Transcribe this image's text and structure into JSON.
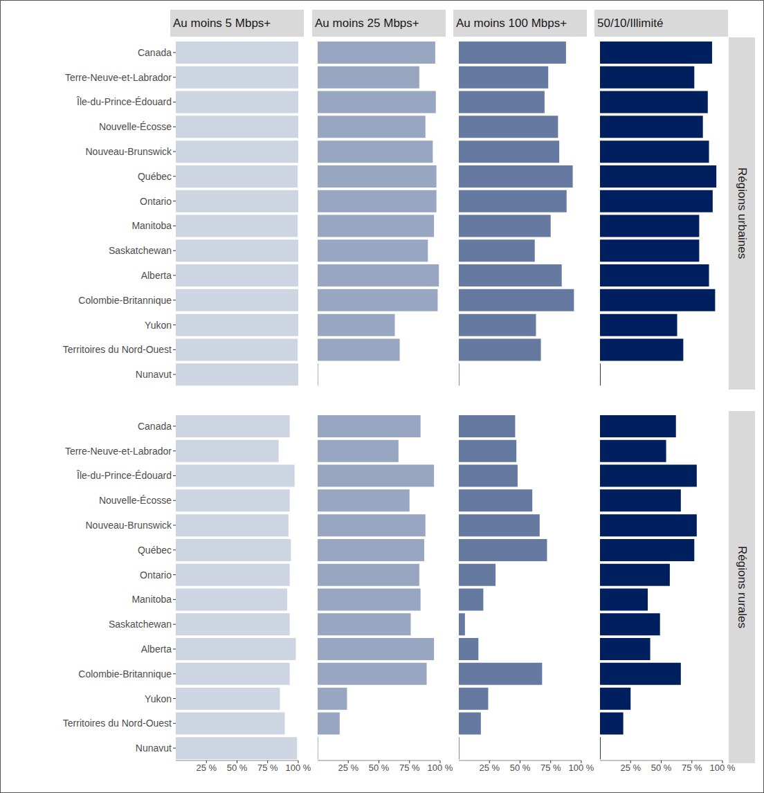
{
  "chart_data": {
    "type": "bar",
    "orientation": "horizontal",
    "categories": [
      "Canada",
      "Terre-Neuve-et-Labrador",
      "Île-du-Prince-Édouard",
      "Nouvelle-Écosse",
      "Nouveau-Brunswick",
      "Québec",
      "Ontario",
      "Manitoba",
      "Saskatchewan",
      "Alberta",
      "Colombie-Britannique",
      "Yukon",
      "Territoires du Nord-Ouest",
      "Nunavut"
    ],
    "xlim": [
      0,
      100
    ],
    "xticks": [
      {
        "value": 25,
        "label": "25 %"
      },
      {
        "value": 50,
        "label": "50 %"
      },
      {
        "value": 75,
        "label": "75 %"
      },
      {
        "value": 100,
        "label": "100 %"
      }
    ],
    "columns": [
      {
        "title": "Au moins 5 Mbps+",
        "color": "#cdd4e2"
      },
      {
        "title": "Au moins 25 Mbps+",
        "color": "#98a6c1"
      },
      {
        "title": "Au moins 100 Mbps+",
        "color": "#6679a1"
      },
      {
        "title": "50/10/Illimité",
        "color": "#001f5f"
      }
    ],
    "rows": [
      {
        "label": "Régions urbaines",
        "values": [
          [
            100,
            100,
            100,
            100,
            100,
            99.5,
            100,
            99.5,
            100,
            100,
            100,
            100,
            99.5,
            100
          ],
          [
            96,
            83,
            96.5,
            88,
            94,
            97,
            97,
            95,
            90,
            99,
            98,
            63,
            67,
            0.5
          ],
          [
            87.5,
            73,
            70,
            81,
            82,
            93,
            88,
            75,
            62,
            84,
            94,
            63,
            67,
            0.5
          ],
          [
            91.5,
            77,
            88,
            84,
            89,
            95,
            92,
            81,
            81,
            89,
            94,
            63,
            68,
            0.5
          ]
        ]
      },
      {
        "label": "Régions rurales",
        "values": [
          [
            93,
            84,
            97,
            93,
            92,
            94,
            93,
            91,
            93,
            98,
            93,
            85,
            89,
            99
          ],
          [
            84,
            66,
            95,
            75,
            88,
            87,
            83,
            84,
            76,
            95,
            89,
            24,
            18,
            0.5
          ],
          [
            46,
            47,
            48,
            60,
            66,
            72,
            30,
            20,
            5,
            16,
            68,
            24,
            18,
            0.5
          ],
          [
            62,
            54,
            79,
            66,
            79,
            77,
            57,
            39,
            49,
            41,
            66,
            25,
            19,
            0.5
          ]
        ]
      }
    ]
  }
}
